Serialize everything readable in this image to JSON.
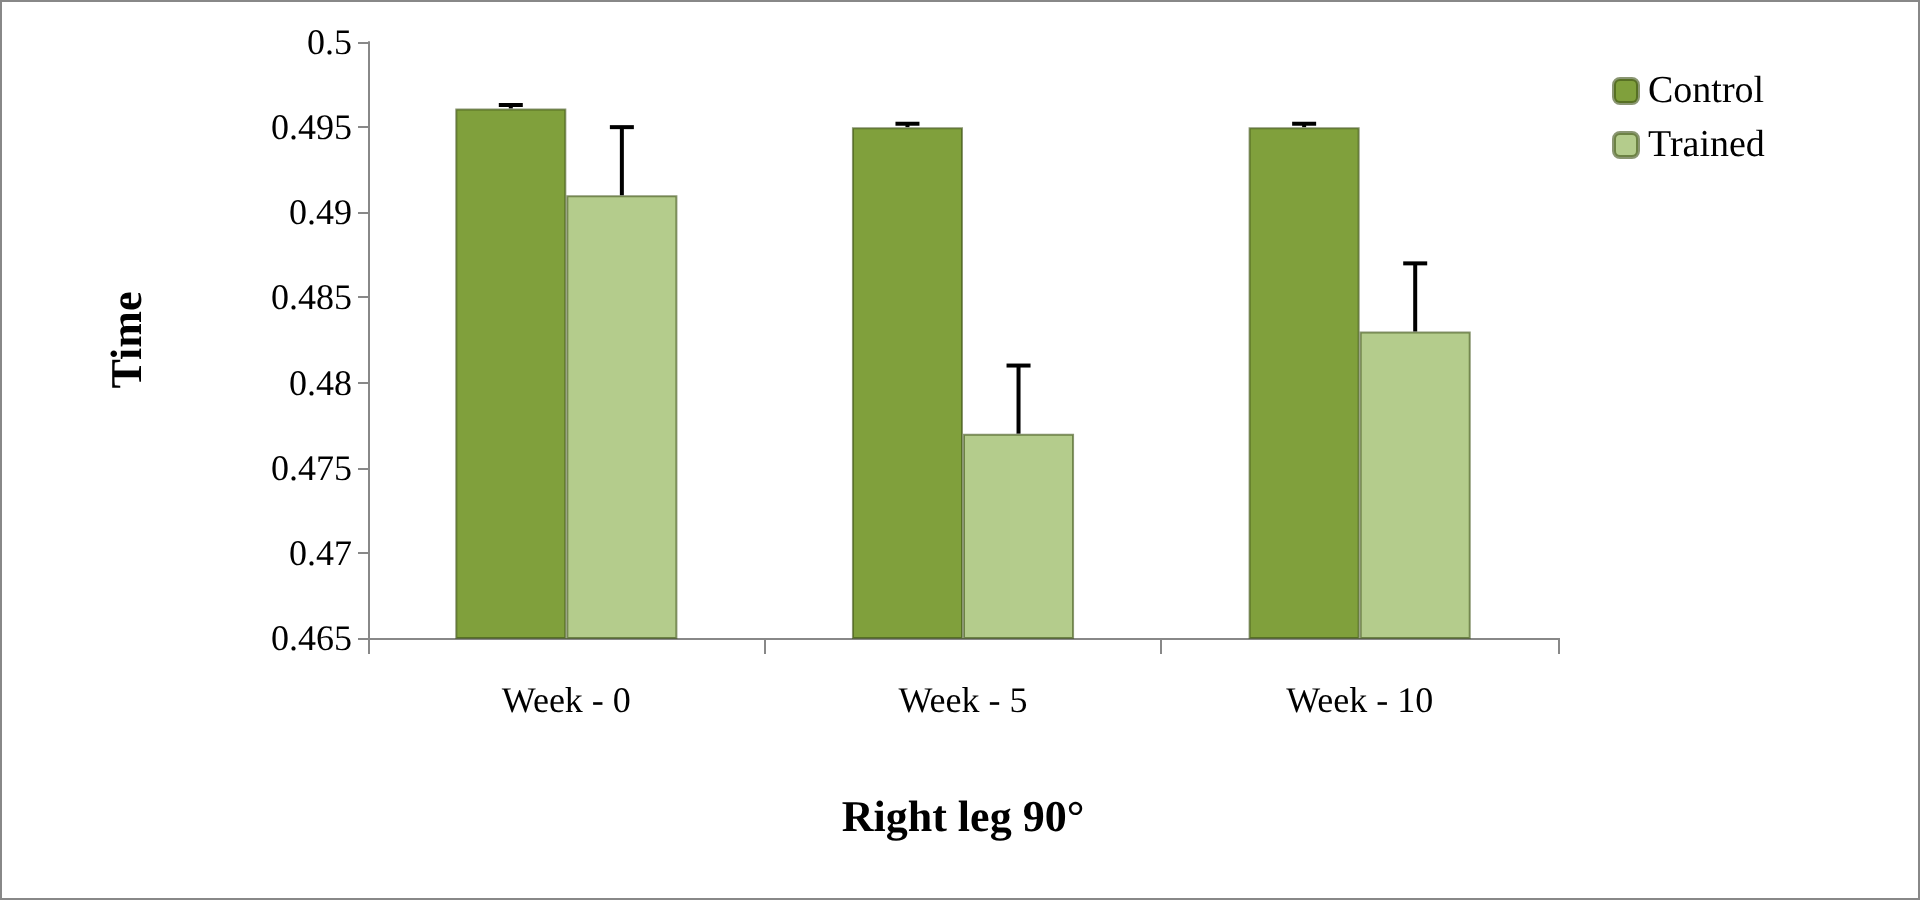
{
  "chart_data": {
    "type": "bar",
    "xlabel": "Right leg 90°",
    "ylabel": "Time",
    "categories": [
      "Week - 0",
      "Week - 5",
      "Week - 10"
    ],
    "series": [
      {
        "name": "Control",
        "color": "#80a03c",
        "values": [
          0.4961,
          0.495,
          0.495
        ],
        "errors": [
          [
            0.4961,
            0.4963
          ],
          [
            0.495,
            0.4952
          ],
          [
            0.495,
            0.4952
          ]
        ]
      },
      {
        "name": "Trained",
        "color": "#b4cc8c",
        "values": [
          0.491,
          0.477,
          0.483
        ],
        "errors": [
          [
            0.491,
            0.495
          ],
          [
            0.477,
            0.481
          ],
          [
            0.483,
            0.487
          ]
        ]
      }
    ],
    "ylim": [
      0.465,
      0.5
    ],
    "yticks": [
      0.465,
      0.47,
      0.475,
      0.48,
      0.485,
      0.49,
      0.495,
      0.5
    ],
    "grid": false,
    "legend": "top right"
  }
}
